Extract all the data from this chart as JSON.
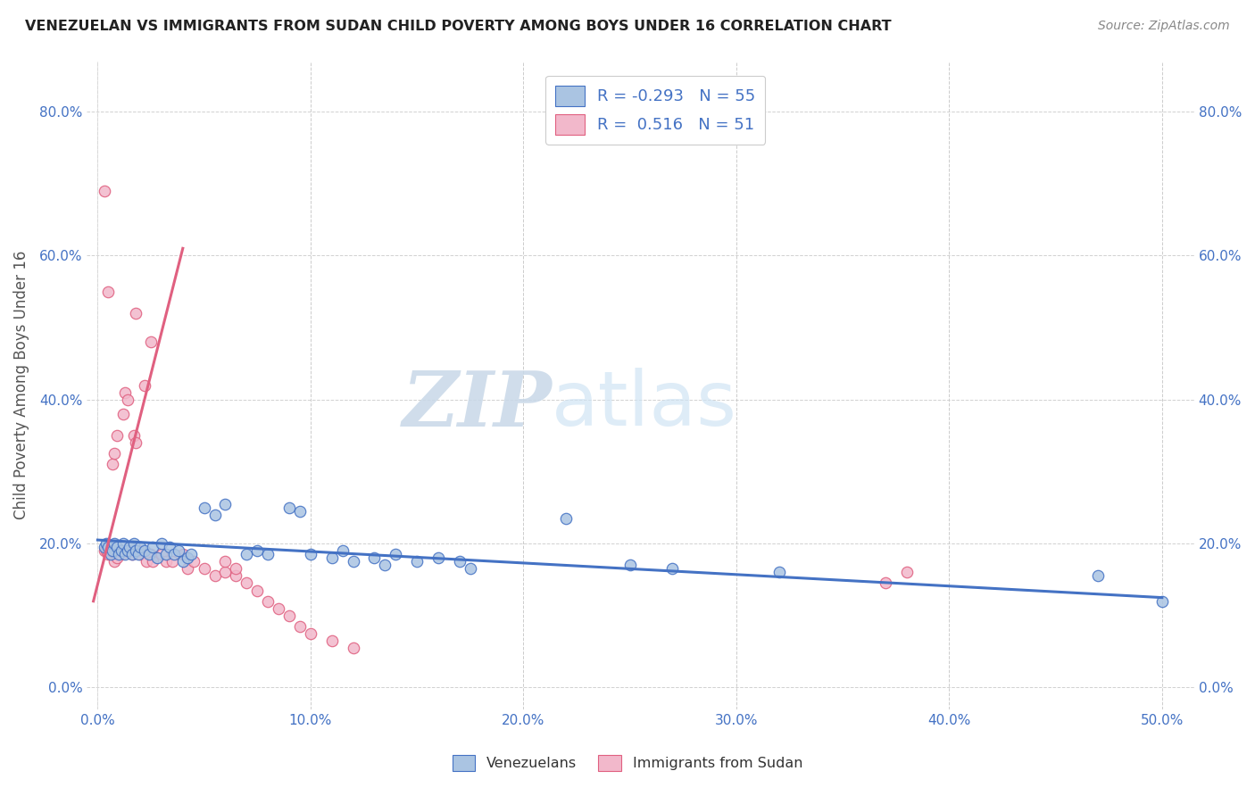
{
  "title": "VENEZUELAN VS IMMIGRANTS FROM SUDAN CHILD POVERTY AMONG BOYS UNDER 16 CORRELATION CHART",
  "source": "Source: ZipAtlas.com",
  "ylabel": "Child Poverty Among Boys Under 16",
  "x_ticks": [
    0.0,
    0.1,
    0.2,
    0.3,
    0.4,
    0.5
  ],
  "x_tick_labels": [
    "0.0%",
    "10.0%",
    "20.0%",
    "30.0%",
    "40.0%",
    "50.0%"
  ],
  "y_ticks": [
    0.0,
    0.2,
    0.4,
    0.6,
    0.8
  ],
  "y_tick_labels": [
    "0.0%",
    "20.0%",
    "40.0%",
    "60.0%",
    "80.0%"
  ],
  "xlim": [
    -0.005,
    0.515
  ],
  "ylim": [
    -0.03,
    0.87
  ],
  "r_venezuelan": -0.293,
  "n_venezuelan": 55,
  "r_sudan": 0.516,
  "n_sudan": 51,
  "venezuelan_color": "#aac4e2",
  "sudan_color": "#f2b8cb",
  "venezuelan_line_color": "#4472c4",
  "sudan_line_color": "#e06080",
  "watermark_zip": "ZIP",
  "watermark_atlas": "atlas",
  "venezuelan_scatter": [
    [
      0.003,
      0.195
    ],
    [
      0.004,
      0.2
    ],
    [
      0.005,
      0.195
    ],
    [
      0.006,
      0.185
    ],
    [
      0.007,
      0.19
    ],
    [
      0.008,
      0.2
    ],
    [
      0.009,
      0.195
    ],
    [
      0.01,
      0.185
    ],
    [
      0.011,
      0.19
    ],
    [
      0.012,
      0.2
    ],
    [
      0.013,
      0.185
    ],
    [
      0.014,
      0.19
    ],
    [
      0.015,
      0.195
    ],
    [
      0.016,
      0.185
    ],
    [
      0.017,
      0.2
    ],
    [
      0.018,
      0.19
    ],
    [
      0.019,
      0.185
    ],
    [
      0.02,
      0.195
    ],
    [
      0.022,
      0.19
    ],
    [
      0.024,
      0.185
    ],
    [
      0.026,
      0.195
    ],
    [
      0.028,
      0.18
    ],
    [
      0.03,
      0.2
    ],
    [
      0.032,
      0.185
    ],
    [
      0.034,
      0.195
    ],
    [
      0.036,
      0.185
    ],
    [
      0.038,
      0.19
    ],
    [
      0.04,
      0.175
    ],
    [
      0.042,
      0.18
    ],
    [
      0.044,
      0.185
    ],
    [
      0.05,
      0.25
    ],
    [
      0.055,
      0.24
    ],
    [
      0.06,
      0.255
    ],
    [
      0.07,
      0.185
    ],
    [
      0.075,
      0.19
    ],
    [
      0.08,
      0.185
    ],
    [
      0.09,
      0.25
    ],
    [
      0.095,
      0.245
    ],
    [
      0.1,
      0.185
    ],
    [
      0.11,
      0.18
    ],
    [
      0.115,
      0.19
    ],
    [
      0.12,
      0.175
    ],
    [
      0.13,
      0.18
    ],
    [
      0.135,
      0.17
    ],
    [
      0.14,
      0.185
    ],
    [
      0.15,
      0.175
    ],
    [
      0.16,
      0.18
    ],
    [
      0.17,
      0.175
    ],
    [
      0.175,
      0.165
    ],
    [
      0.22,
      0.235
    ],
    [
      0.25,
      0.17
    ],
    [
      0.27,
      0.165
    ],
    [
      0.32,
      0.16
    ],
    [
      0.47,
      0.155
    ],
    [
      0.5,
      0.12
    ]
  ],
  "sudan_scatter": [
    [
      0.003,
      0.19
    ],
    [
      0.004,
      0.19
    ],
    [
      0.005,
      0.185
    ],
    [
      0.006,
      0.19
    ],
    [
      0.007,
      0.31
    ],
    [
      0.008,
      0.325
    ],
    [
      0.009,
      0.35
    ],
    [
      0.01,
      0.185
    ],
    [
      0.011,
      0.185
    ],
    [
      0.012,
      0.38
    ],
    [
      0.013,
      0.41
    ],
    [
      0.014,
      0.4
    ],
    [
      0.015,
      0.19
    ],
    [
      0.016,
      0.185
    ],
    [
      0.017,
      0.35
    ],
    [
      0.018,
      0.34
    ],
    [
      0.019,
      0.19
    ],
    [
      0.02,
      0.185
    ],
    [
      0.022,
      0.42
    ],
    [
      0.023,
      0.175
    ],
    [
      0.025,
      0.185
    ],
    [
      0.026,
      0.175
    ],
    [
      0.03,
      0.185
    ],
    [
      0.032,
      0.175
    ],
    [
      0.035,
      0.175
    ],
    [
      0.04,
      0.185
    ],
    [
      0.042,
      0.165
    ],
    [
      0.045,
      0.175
    ],
    [
      0.05,
      0.165
    ],
    [
      0.055,
      0.155
    ],
    [
      0.06,
      0.16
    ],
    [
      0.065,
      0.155
    ],
    [
      0.07,
      0.145
    ],
    [
      0.075,
      0.135
    ],
    [
      0.08,
      0.12
    ],
    [
      0.085,
      0.11
    ],
    [
      0.09,
      0.1
    ],
    [
      0.095,
      0.085
    ],
    [
      0.1,
      0.075
    ],
    [
      0.11,
      0.065
    ],
    [
      0.12,
      0.055
    ],
    [
      0.018,
      0.52
    ],
    [
      0.025,
      0.48
    ],
    [
      0.005,
      0.55
    ],
    [
      0.003,
      0.69
    ],
    [
      0.008,
      0.175
    ],
    [
      0.009,
      0.18
    ],
    [
      0.06,
      0.175
    ],
    [
      0.065,
      0.165
    ],
    [
      0.37,
      0.145
    ],
    [
      0.38,
      0.16
    ]
  ],
  "venezuelan_trendline": [
    [
      0.0,
      0.205
    ],
    [
      0.5,
      0.125
    ]
  ],
  "sudan_trendline": [
    [
      -0.002,
      0.12
    ],
    [
      0.04,
      0.61
    ]
  ]
}
